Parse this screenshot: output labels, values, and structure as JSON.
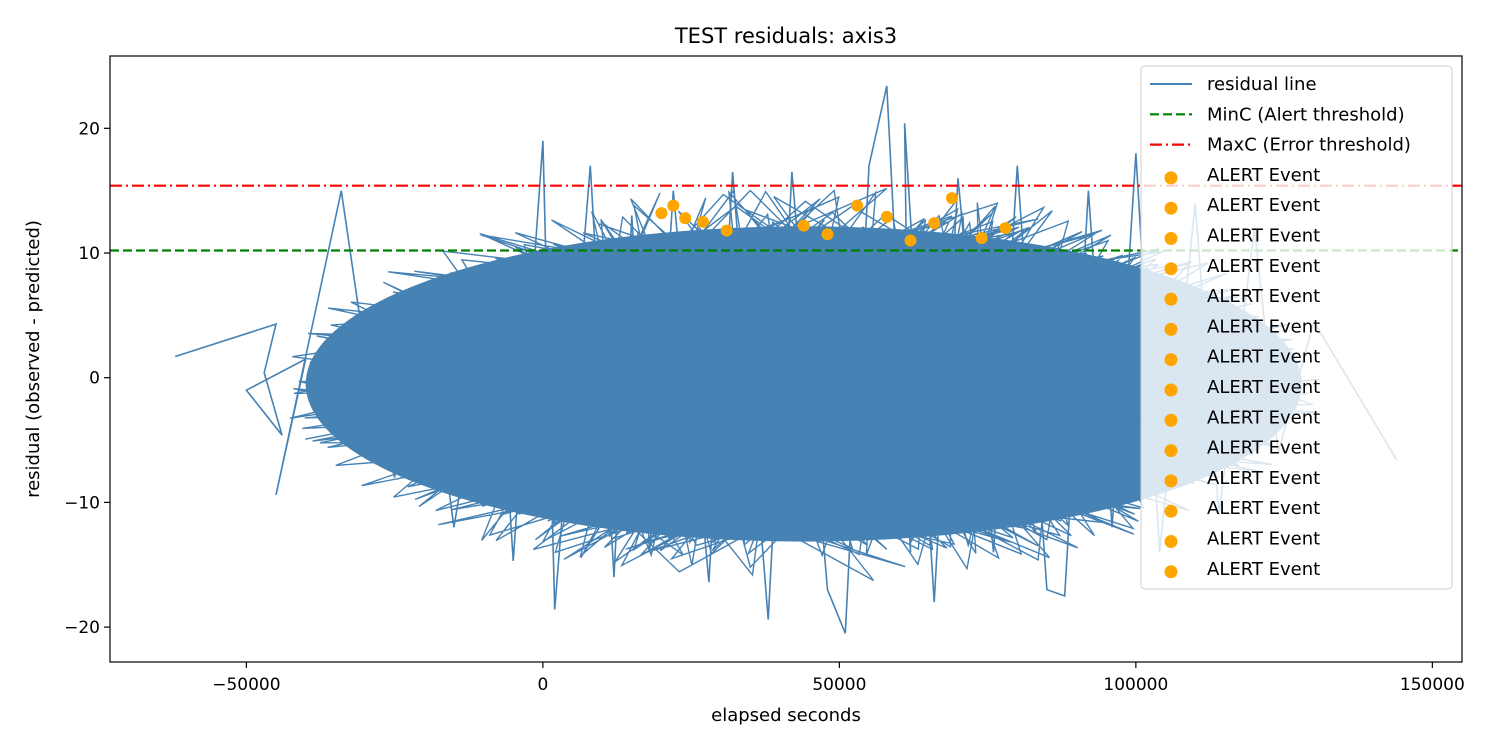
{
  "chart_data": {
    "type": "line",
    "title": "TEST residuals: axis3",
    "xlabel": "elapsed seconds",
    "ylabel": "residual (observed - predicted)",
    "xlim": [
      -73000,
      155000
    ],
    "ylim": [
      -22.8,
      25.8
    ],
    "x_ticks": [
      -50000,
      0,
      50000,
      100000,
      150000
    ],
    "x_tick_labels": [
      "−50000",
      "0",
      "50000",
      "100000",
      "150000"
    ],
    "y_ticks": [
      -20,
      -10,
      0,
      10,
      20
    ],
    "y_tick_labels": [
      "−20",
      "−10",
      "0",
      "10",
      "20"
    ],
    "grid": false,
    "legend_position": "top-right",
    "series": [
      {
        "name": "residual line",
        "kind": "line",
        "color": "#4682b4",
        "points": [
          [
            -62000,
            1.7
          ],
          [
            -45000,
            4.3
          ],
          [
            -47000,
            0.4
          ],
          [
            -44000,
            -4.6
          ],
          [
            -50000,
            -1.0
          ],
          [
            -40000,
            1.5
          ],
          [
            -45000,
            -9.4
          ],
          [
            -34000,
            15.0
          ],
          [
            -30000,
            2.0
          ],
          [
            -25000,
            -8.0
          ],
          [
            -20000,
            6.0
          ],
          [
            -15000,
            -12.0
          ],
          [
            -8000,
            8.0
          ],
          [
            -5000,
            -14.7
          ],
          [
            0,
            19.0
          ],
          [
            2000,
            -18.6
          ],
          [
            8000,
            17.0
          ],
          [
            12000,
            -16.0
          ],
          [
            15000,
            13.0
          ],
          [
            18000,
            -14.0
          ],
          [
            22000,
            15.0
          ],
          [
            28000,
            -16.4
          ],
          [
            32000,
            16.5
          ],
          [
            38000,
            -19.4
          ],
          [
            42000,
            16.5
          ],
          [
            48000,
            -17.0
          ],
          [
            51000,
            -20.5
          ],
          [
            55000,
            17.0
          ],
          [
            58000,
            23.4
          ],
          [
            62000,
            -14.0
          ],
          [
            61000,
            20.4
          ],
          [
            66000,
            -18.0
          ],
          [
            70000,
            16.0
          ],
          [
            76000,
            -14.0
          ],
          [
            80000,
            17.0
          ],
          [
            85000,
            -17.0
          ],
          [
            88000,
            -17.5
          ],
          [
            92000,
            15.0
          ],
          [
            96000,
            -12.0
          ],
          [
            100000,
            18.0
          ],
          [
            104000,
            -14.0
          ],
          [
            110000,
            14.0
          ],
          [
            114000,
            -11.0
          ],
          [
            120000,
            12.0
          ],
          [
            124000,
            -6.0
          ],
          [
            130000,
            4.5
          ],
          [
            144000,
            -6.6
          ]
        ]
      },
      {
        "name": "MinC (Alert threshold)",
        "kind": "hline",
        "y": 10.2,
        "color": "#008000",
        "dash": "dashed"
      },
      {
        "name": "MaxC (Error threshold)",
        "kind": "hline",
        "y": 15.4,
        "color": "#ff0000",
        "dash": "dashdot"
      }
    ],
    "scatter": {
      "name": "ALERT Event",
      "color": "#ffa500",
      "points": [
        [
          20000,
          13.2
        ],
        [
          22000,
          13.8
        ],
        [
          24000,
          12.8
        ],
        [
          53000,
          13.8
        ],
        [
          69000,
          14.4
        ],
        [
          27000,
          12.5
        ],
        [
          31000,
          11.8
        ],
        [
          44000,
          12.2
        ],
        [
          48000,
          11.5
        ],
        [
          58000,
          12.9
        ],
        [
          62000,
          11.0
        ],
        [
          66000,
          12.4
        ],
        [
          74000,
          11.2
        ],
        [
          78000,
          12.0
        ]
      ]
    },
    "legend": [
      {
        "label": "residual line",
        "marker": "line",
        "color": "#4682b4"
      },
      {
        "label": "MinC (Alert threshold)",
        "marker": "dashed",
        "color": "#008000"
      },
      {
        "label": "MaxC (Error threshold)",
        "marker": "dashdot",
        "color": "#ff0000"
      },
      {
        "label": "ALERT Event",
        "marker": "dot",
        "color": "#ffa500"
      },
      {
        "label": "ALERT Event",
        "marker": "dot",
        "color": "#ffa500"
      },
      {
        "label": "ALERT Event",
        "marker": "dot",
        "color": "#ffa500"
      },
      {
        "label": "ALERT Event",
        "marker": "dot",
        "color": "#ffa500"
      },
      {
        "label": "ALERT Event",
        "marker": "dot",
        "color": "#ffa500"
      },
      {
        "label": "ALERT Event",
        "marker": "dot",
        "color": "#ffa500"
      },
      {
        "label": "ALERT Event",
        "marker": "dot",
        "color": "#ffa500"
      },
      {
        "label": "ALERT Event",
        "marker": "dot",
        "color": "#ffa500"
      },
      {
        "label": "ALERT Event",
        "marker": "dot",
        "color": "#ffa500"
      },
      {
        "label": "ALERT Event",
        "marker": "dot",
        "color": "#ffa500"
      },
      {
        "label": "ALERT Event",
        "marker": "dot",
        "color": "#ffa500"
      },
      {
        "label": "ALERT Event",
        "marker": "dot",
        "color": "#ffa500"
      },
      {
        "label": "ALERT Event",
        "marker": "dot",
        "color": "#ffa500"
      },
      {
        "label": "ALERT Event",
        "marker": "dot",
        "color": "#ffa500"
      }
    ]
  }
}
